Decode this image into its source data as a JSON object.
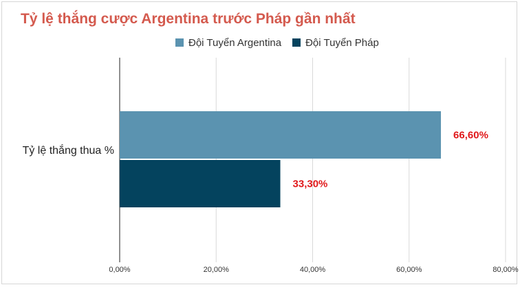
{
  "chart_data": {
    "type": "bar",
    "orientation": "horizontal",
    "title": "Tỷ lệ thắng cược Argentina trước Pháp gần nhất",
    "categories": [
      "Tỷ lệ thắng thua %"
    ],
    "series": [
      {
        "name": "Đội Tuyển Argentina",
        "values": [
          66.6
        ],
        "label": "66,60%",
        "color": "#5b93b0"
      },
      {
        "name": "Đội Tuyển Pháp",
        "values": [
          33.3
        ],
        "label": "33,30%",
        "color": "#04435e"
      }
    ],
    "xlim": [
      0,
      80
    ],
    "xticks": [
      "0,00%",
      "20,00%",
      "40,00%",
      "60,00%",
      "80,00%"
    ],
    "xtick_values": [
      0,
      20,
      40,
      60,
      80
    ],
    "grid": true,
    "legend_position": "top",
    "title_color": "#d45a4e",
    "data_label_color": "#e0191b"
  }
}
